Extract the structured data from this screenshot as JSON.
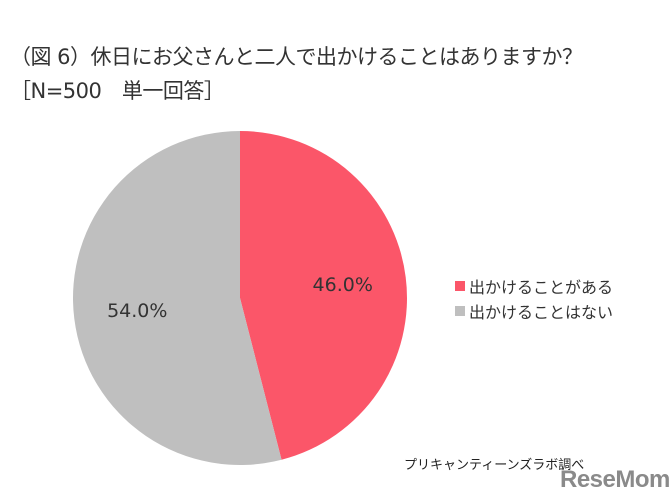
{
  "header": {
    "title": "（図 6）休日にお父さんと二人で出かけることはありますか？",
    "subtitle": "［N=500　単一回答］"
  },
  "labels": {
    "slice_0": "46.0%",
    "slice_1": "54.0%"
  },
  "legend": {
    "items": [
      {
        "label": "出かけることがある",
        "color": "#fb5669"
      },
      {
        "label": "出かけることはない",
        "color": "#bfbfbf"
      }
    ]
  },
  "footer": {
    "source": "プリキャンティーンズラボ調べ",
    "logo": "ReseMom."
  },
  "chart_data": {
    "type": "pie",
    "title": "（図 6）休日にお父さんと二人で出かけることはありますか？",
    "subtitle": "［N=500　単一回答］",
    "categories": [
      "出かけることがある",
      "出かけることはない"
    ],
    "values": [
      46.0,
      54.0
    ],
    "unit": "%",
    "colors": [
      "#fb5669",
      "#bfbfbf"
    ],
    "start_angle": "12 o'clock, clockwise",
    "legend_position": "right",
    "annotations": [
      "プリキャンティーンズラボ調べ"
    ]
  }
}
